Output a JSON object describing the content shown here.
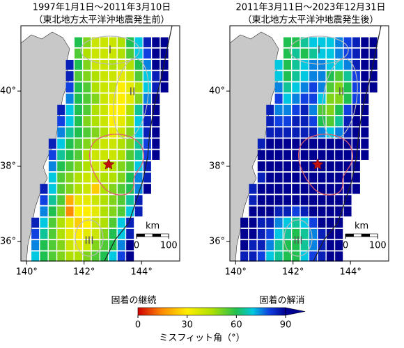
{
  "maps": [
    {
      "title": "1997年1月1日～2011年3月10日",
      "subtitle": "（東北地方太平洋沖地震発生前）",
      "values": [
        [
          null,
          null,
          null,
          null,
          null,
          60,
          50,
          40,
          40,
          40,
          45,
          60,
          70,
          85,
          90,
          90,
          null
        ],
        [
          null,
          null,
          null,
          null,
          null,
          55,
          45,
          40,
          40,
          40,
          45,
          55,
          70,
          80,
          90,
          90,
          null
        ],
        [
          null,
          null,
          null,
          null,
          85,
          60,
          50,
          40,
          40,
          45,
          40,
          45,
          60,
          75,
          90,
          90,
          null
        ],
        [
          null,
          null,
          null,
          null,
          85,
          55,
          50,
          45,
          40,
          40,
          35,
          40,
          55,
          70,
          85,
          90,
          null
        ],
        [
          null,
          null,
          null,
          null,
          80,
          60,
          55,
          45,
          40,
          40,
          30,
          35,
          45,
          70,
          85,
          90,
          null
        ],
        [
          null,
          null,
          null,
          null,
          75,
          60,
          55,
          50,
          40,
          35,
          30,
          35,
          50,
          75,
          90,
          null,
          null
        ],
        [
          null,
          null,
          null,
          85,
          70,
          60,
          55,
          45,
          40,
          30,
          30,
          45,
          65,
          85,
          90,
          null,
          null
        ],
        [
          null,
          null,
          null,
          80,
          70,
          60,
          50,
          45,
          40,
          30,
          35,
          45,
          70,
          85,
          90,
          null,
          null
        ],
        [
          null,
          null,
          null,
          75,
          65,
          60,
          55,
          50,
          45,
          35,
          40,
          50,
          70,
          85,
          90,
          null,
          null
        ],
        [
          null,
          null,
          85,
          70,
          60,
          55,
          50,
          45,
          40,
          40,
          45,
          50,
          65,
          80,
          90,
          null,
          null
        ],
        [
          null,
          null,
          80,
          65,
          60,
          55,
          45,
          40,
          40,
          40,
          45,
          55,
          65,
          80,
          90,
          null,
          null
        ],
        [
          null,
          null,
          75,
          60,
          55,
          50,
          45,
          40,
          40,
          45,
          50,
          55,
          70,
          85,
          null,
          null,
          null
        ],
        [
          null,
          null,
          70,
          55,
          50,
          45,
          40,
          40,
          45,
          45,
          50,
          60,
          75,
          85,
          null,
          null,
          null
        ],
        [
          null,
          85,
          70,
          55,
          50,
          45,
          40,
          25,
          45,
          50,
          55,
          60,
          75,
          90,
          null,
          null,
          null
        ],
        [
          null,
          80,
          65,
          55,
          20,
          35,
          35,
          40,
          45,
          50,
          55,
          65,
          85,
          null,
          null,
          null,
          null
        ],
        [
          null,
          75,
          60,
          50,
          15,
          30,
          30,
          35,
          45,
          50,
          55,
          70,
          85,
          null,
          null,
          null,
          null
        ],
        [
          85,
          70,
          55,
          45,
          35,
          25,
          30,
          40,
          45,
          55,
          70,
          85,
          null,
          null,
          null,
          null,
          null
        ],
        [
          80,
          65,
          55,
          45,
          35,
          30,
          35,
          40,
          50,
          60,
          70,
          85,
          null,
          null,
          null,
          null,
          null
        ],
        [
          75,
          60,
          55,
          50,
          40,
          35,
          40,
          50,
          55,
          60,
          75,
          90,
          null,
          null,
          null,
          null,
          null
        ],
        [
          70,
          60,
          55,
          50,
          45,
          45,
          50,
          55,
          60,
          70,
          80,
          90,
          null,
          null,
          null,
          null,
          null
        ]
      ]
    },
    {
      "title": "2011年3月11日～2023年12月31日",
      "subtitle": "（東北地方太平洋沖地震発生後）",
      "values": [
        [
          null,
          null,
          null,
          null,
          null,
          60,
          60,
          65,
          70,
          70,
          70,
          75,
          80,
          85,
          90,
          90,
          null
        ],
        [
          null,
          null,
          null,
          null,
          null,
          60,
          65,
          60,
          65,
          70,
          70,
          75,
          80,
          85,
          90,
          90,
          null
        ],
        [
          null,
          null,
          null,
          null,
          70,
          60,
          65,
          70,
          75,
          75,
          70,
          70,
          75,
          85,
          90,
          90,
          null
        ],
        [
          null,
          null,
          null,
          null,
          70,
          60,
          65,
          70,
          75,
          75,
          60,
          55,
          65,
          80,
          90,
          90,
          null
        ],
        [
          null,
          null,
          null,
          null,
          75,
          65,
          70,
          75,
          80,
          75,
          55,
          50,
          60,
          80,
          90,
          90,
          null
        ],
        [
          null,
          null,
          null,
          null,
          80,
          70,
          75,
          80,
          80,
          70,
          50,
          50,
          60,
          80,
          90,
          null,
          null
        ],
        [
          null,
          null,
          null,
          85,
          75,
          75,
          80,
          85,
          75,
          55,
          50,
          60,
          80,
          90,
          90,
          null,
          null
        ],
        [
          null,
          null,
          null,
          85,
          80,
          80,
          85,
          85,
          80,
          60,
          55,
          65,
          85,
          90,
          90,
          null,
          null
        ],
        [
          null,
          null,
          null,
          85,
          85,
          85,
          85,
          85,
          85,
          75,
          70,
          75,
          85,
          90,
          90,
          null,
          null
        ],
        [
          null,
          null,
          85,
          90,
          90,
          90,
          90,
          90,
          90,
          90,
          90,
          90,
          90,
          90,
          90,
          null,
          null
        ],
        [
          null,
          null,
          90,
          90,
          90,
          90,
          90,
          90,
          90,
          90,
          90,
          90,
          90,
          90,
          90,
          null,
          null
        ],
        [
          null,
          null,
          90,
          90,
          90,
          90,
          90,
          90,
          90,
          90,
          90,
          90,
          90,
          90,
          null,
          null,
          null
        ],
        [
          null,
          null,
          85,
          90,
          90,
          90,
          90,
          90,
          90,
          90,
          90,
          90,
          90,
          90,
          null,
          null,
          null
        ],
        [
          null,
          85,
          90,
          90,
          90,
          90,
          90,
          90,
          90,
          90,
          90,
          90,
          90,
          90,
          null,
          null,
          null
        ],
        [
          null,
          85,
          90,
          90,
          90,
          90,
          90,
          90,
          90,
          90,
          90,
          90,
          90,
          null,
          null,
          null,
          null
        ],
        [
          null,
          90,
          90,
          90,
          85,
          85,
          80,
          85,
          90,
          90,
          90,
          90,
          90,
          null,
          null,
          null,
          null
        ],
        [
          90,
          90,
          85,
          85,
          75,
          70,
          65,
          70,
          80,
          90,
          90,
          90,
          null,
          null,
          null,
          null,
          null
        ],
        [
          90,
          90,
          85,
          80,
          70,
          65,
          60,
          65,
          75,
          85,
          90,
          90,
          null,
          null,
          null,
          null,
          null
        ],
        [
          90,
          85,
          85,
          75,
          65,
          60,
          60,
          65,
          75,
          85,
          90,
          90,
          null,
          null,
          null,
          null,
          null
        ],
        [
          85,
          85,
          80,
          70,
          65,
          60,
          60,
          70,
          80,
          85,
          90,
          90,
          null,
          null,
          null,
          null,
          null
        ]
      ]
    }
  ],
  "lons": [
    140.3,
    140.6,
    140.9,
    141.2,
    141.5,
    141.8,
    142.1,
    142.4,
    142.7,
    143.0,
    143.3,
    143.6,
    143.9,
    144.2,
    144.5,
    144.8,
    145.1
  ],
  "lats": [
    41.3,
    41.0,
    40.7,
    40.4,
    40.1,
    39.8,
    39.5,
    39.2,
    38.9,
    38.6,
    38.3,
    38.0,
    37.7,
    37.4,
    37.1,
    36.8,
    36.5,
    36.2,
    35.9,
    35.6
  ],
  "xlim": [
    139.8,
    145.33
  ],
  "ylim": [
    35.48,
    41.74
  ],
  "xticks": [
    {
      "value": 140,
      "label": "140°"
    },
    {
      "value": 142,
      "label": "142°"
    },
    {
      "value": 144,
      "label": "144°"
    }
  ],
  "yticks": [
    {
      "value": 36,
      "label": "36°"
    },
    {
      "value": 38,
      "label": "38°"
    },
    {
      "value": 40,
      "label": "40°"
    }
  ],
  "regions": [
    "I",
    "II",
    "III"
  ],
  "scale_bar": {
    "unit": "km",
    "ticks": [
      0,
      100
    ]
  },
  "colorbar": {
    "label_left": "固着の継続",
    "label_right": "固着の解消",
    "title": "ミスフィット角（°）",
    "lim": [
      0,
      90
    ],
    "ticks": [
      0,
      30,
      60,
      90
    ],
    "stops": [
      {
        "value": 0,
        "color": "#d00000"
      },
      {
        "value": 15,
        "color": "#ff8c00"
      },
      {
        "value": 30,
        "color": "#ffee00"
      },
      {
        "value": 45,
        "color": "#b0e000"
      },
      {
        "value": 60,
        "color": "#20c050"
      },
      {
        "value": 70,
        "color": "#00c8e0"
      },
      {
        "value": 80,
        "color": "#1040e0"
      },
      {
        "value": 90,
        "color": "#000090"
      }
    ]
  }
}
